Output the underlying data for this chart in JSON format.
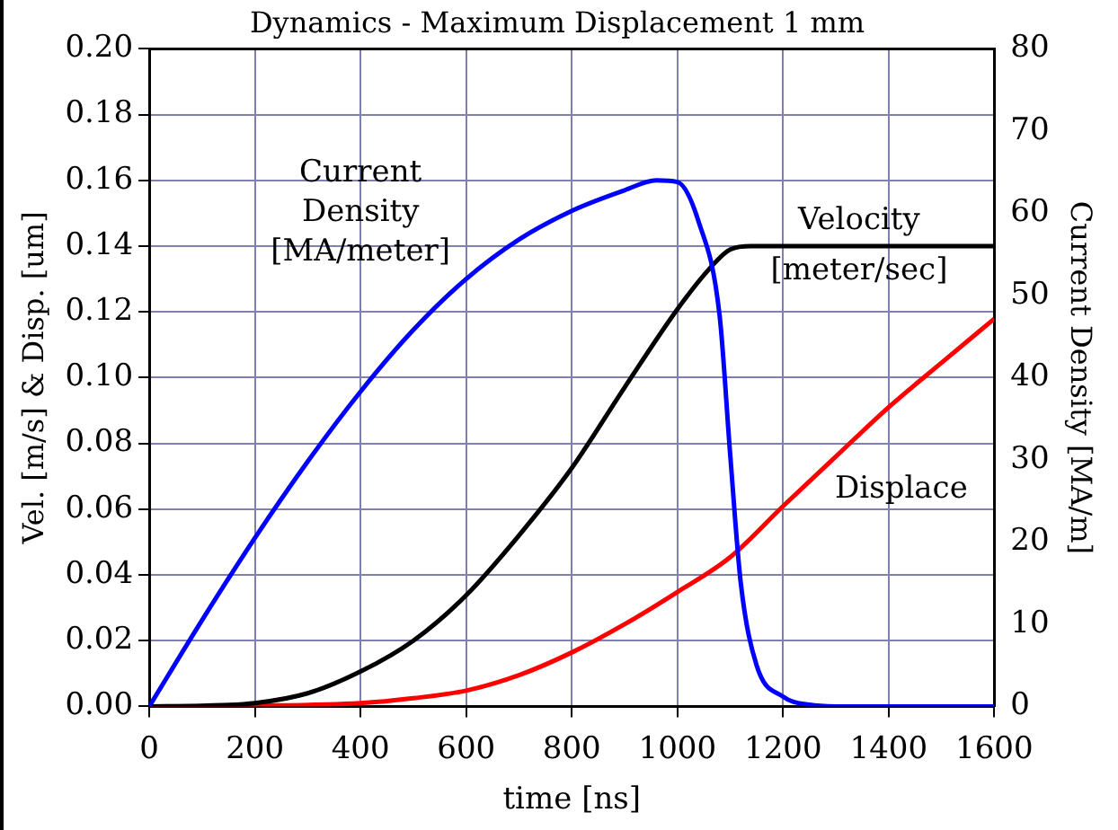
{
  "chart_data": {
    "type": "line",
    "title": "Dynamics - Maximum Displacement 1 mm",
    "xlabel": "time [ns]",
    "ylabel": "Vel. [m/s] & Disp. [um]",
    "y2label": "Current Density [MA/m]",
    "xlim": [
      0,
      1600
    ],
    "xticks": [
      0,
      200,
      400,
      600,
      800,
      1000,
      1200,
      1400,
      1600
    ],
    "ylim": [
      0,
      0.2
    ],
    "yticks": [
      {
        "value": 0,
        "label": "0.00"
      },
      {
        "value": 0.02,
        "label": "0.02"
      },
      {
        "value": 0.04,
        "label": "0.04"
      },
      {
        "value": 0.06,
        "label": "0.06"
      },
      {
        "value": 0.08,
        "label": "0.08"
      },
      {
        "value": 0.1,
        "label": "0.10"
      },
      {
        "value": 0.12,
        "label": "0.12"
      },
      {
        "value": 0.14,
        "label": "0.14"
      },
      {
        "value": 0.16,
        "label": "0.16"
      },
      {
        "value": 0.18,
        "label": "0.18"
      },
      {
        "value": 0.2,
        "label": "0.20"
      }
    ],
    "y2lim": [
      0,
      80
    ],
    "y2ticks": [
      0,
      10,
      20,
      30,
      40,
      50,
      60,
      70,
      80
    ],
    "grid": true,
    "legend": false,
    "marker": "none",
    "line_style": "solid",
    "series": [
      {
        "name": "Current Density [MA/meter]",
        "color": "#0000ff",
        "axis": "y2",
        "x": [
          0,
          100,
          200,
          300,
          400,
          500,
          600,
          700,
          800,
          900,
          960,
          1000,
          1040,
          1080,
          1100,
          1120,
          1150,
          1200,
          1250,
          1300,
          1400,
          1600
        ],
        "values": [
          0,
          10.5,
          20.5,
          29.8,
          38.3,
          45.8,
          52,
          56.8,
          60.3,
          62.8,
          64,
          63.8,
          59,
          47.5,
          30.6,
          15,
          5,
          1.2,
          0.2,
          0,
          0,
          0
        ]
      },
      {
        "name": "Velocity [meter/sec]",
        "color": "#000000",
        "x": [
          0,
          100,
          200,
          300,
          400,
          500,
          600,
          700,
          800,
          900,
          1000,
          1060,
          1100,
          1140,
          1200,
          1400,
          1600
        ],
        "values": [
          0,
          0.0002,
          0.001,
          0.004,
          0.0106,
          0.02,
          0.0338,
          0.052,
          0.0725,
          0.097,
          0.1208,
          0.133,
          0.139,
          0.14,
          0.14,
          0.14,
          0.14
        ]
      },
      {
        "name": "Displace",
        "color": "#ff0000",
        "x": [
          0,
          200,
          400,
          500,
          600,
          700,
          800,
          900,
          1000,
          1100,
          1200,
          1300,
          1400,
          1500,
          1600
        ],
        "values": [
          0,
          0.0002,
          0.001,
          0.0025,
          0.0048,
          0.0095,
          0.0164,
          0.025,
          0.0348,
          0.0454,
          0.0609,
          0.076,
          0.091,
          0.1045,
          0.1179
        ]
      }
    ]
  }
}
